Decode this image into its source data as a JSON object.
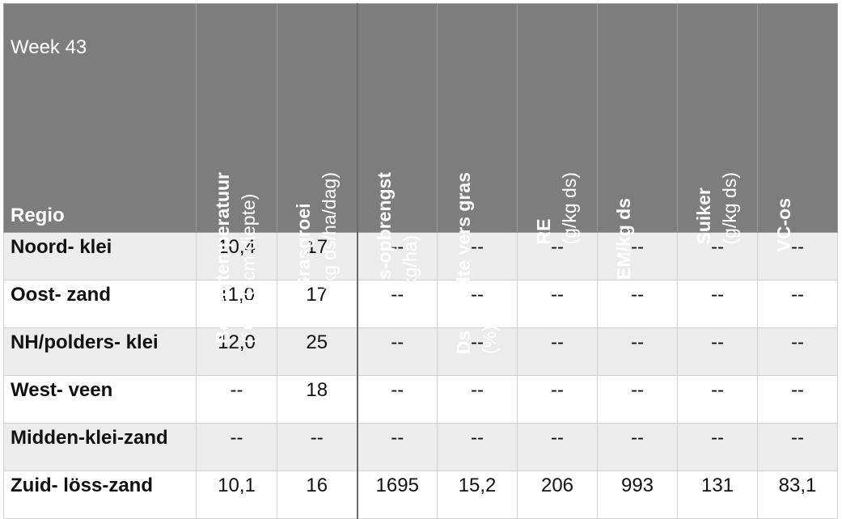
{
  "table": {
    "week_label": "Week 43",
    "regio_label": "Regio",
    "columns": [
      {
        "bold": "Bodemtemperatuur",
        "unit": "(°C, 10 cm diepte)"
      },
      {
        "bold": "Grasgroei",
        "unit": "(kg ds/ha/dag)"
      },
      {
        "bold": "Ds-opbrengst",
        "unit": "(kg/ha)"
      },
      {
        "bold": "Ds gehalte vers gras",
        "unit": "(%)"
      },
      {
        "bold": "RE",
        "unit": "(g/kg ds)"
      },
      {
        "bold": "VEM/kg ds",
        "unit": ""
      },
      {
        "bold": "Suiker",
        "unit": "(g/kg ds)"
      },
      {
        "bold": "VC-os",
        "unit": ""
      }
    ],
    "rows": [
      {
        "region": "Noord- klei",
        "values": [
          "10,4",
          "17",
          "--",
          "--",
          "--",
          "--",
          "--",
          "--"
        ]
      },
      {
        "region": "Oost- zand",
        "values": [
          "11,0",
          "17",
          "--",
          "--",
          "--",
          "--",
          "--",
          "--"
        ]
      },
      {
        "region": "NH/polders- klei",
        "values": [
          "12,0",
          "25",
          "--",
          "--",
          "--",
          "--",
          "--",
          "--"
        ]
      },
      {
        "region": "West- veen",
        "values": [
          "--",
          "18",
          "--",
          "--",
          "--",
          "--",
          "--",
          "--"
        ]
      },
      {
        "region": "Midden-klei-zand",
        "values": [
          "--",
          "--",
          "--",
          "--",
          "--",
          "--",
          "--",
          "--"
        ]
      },
      {
        "region": "Zuid- löss-zand",
        "values": [
          "10,1",
          "16",
          "1695",
          "15,2",
          "206",
          "993",
          "131",
          "83,1"
        ]
      }
    ]
  }
}
